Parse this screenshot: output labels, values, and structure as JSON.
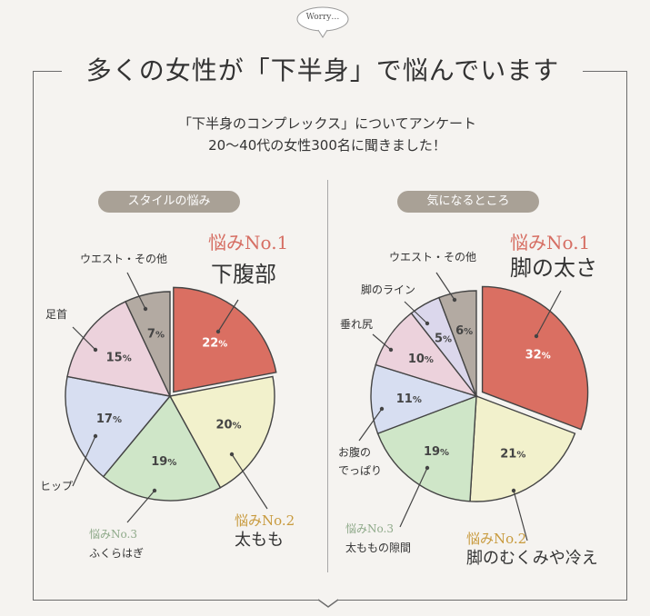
{
  "badge": "Worry…",
  "title": "多くの女性が「下半身」で悩んでいます",
  "subtitle_line1": "「下半身のコンプレックス」についてアンケート",
  "subtitle_line2": "20〜40代の女性300名に聞きました！",
  "colors": {
    "red": "#da6f62",
    "yellow": "#f2f1cc",
    "green": "#cfe6c8",
    "blue": "#d7def1",
    "pink": "#ecd2dc",
    "lavender": "#dbd7ec",
    "gray": "#b3aaa2",
    "rank1": "#d66e63",
    "rank2": "#c89a3d",
    "rank3": "#8faa8a"
  },
  "chart_data": [
    {
      "type": "pie",
      "title": "スタイルの悩み",
      "slices": [
        {
          "label": "下腹部",
          "value": 22,
          "color": "red",
          "rank": "悩みNo.1"
        },
        {
          "label": "太もも",
          "value": 20,
          "color": "yellow",
          "rank": "悩みNo.2"
        },
        {
          "label": "ふくらはぎ",
          "value": 19,
          "color": "green",
          "rank": "悩みNo.3"
        },
        {
          "label": "ヒップ",
          "value": 17,
          "color": "blue",
          "rank": ""
        },
        {
          "label": "足首",
          "value": 15,
          "color": "pink",
          "rank": ""
        },
        {
          "label": "ウエスト・その他",
          "value": 7,
          "color": "gray",
          "rank": ""
        }
      ]
    },
    {
      "type": "pie",
      "title": "気になるところ",
      "slices": [
        {
          "label": "脚の太さ",
          "value": 32,
          "color": "red",
          "rank": "悩みNo.1"
        },
        {
          "label": "脚のむくみや冷え",
          "value": 21,
          "color": "yellow",
          "rank": "悩みNo.2"
        },
        {
          "label": "太ももの隙間",
          "value": 19,
          "color": "green",
          "rank": "悩みNo.3"
        },
        {
          "label": "お腹のでっぱり",
          "value": 11,
          "color": "blue",
          "rank": ""
        },
        {
          "label": "垂れ尻",
          "value": 10,
          "color": "pink",
          "rank": ""
        },
        {
          "label": "脚のライン",
          "value": 5,
          "color": "lavender",
          "rank": ""
        },
        {
          "label": "ウエスト・その他",
          "value": 6,
          "color": "gray",
          "rank": ""
        }
      ]
    }
  ]
}
